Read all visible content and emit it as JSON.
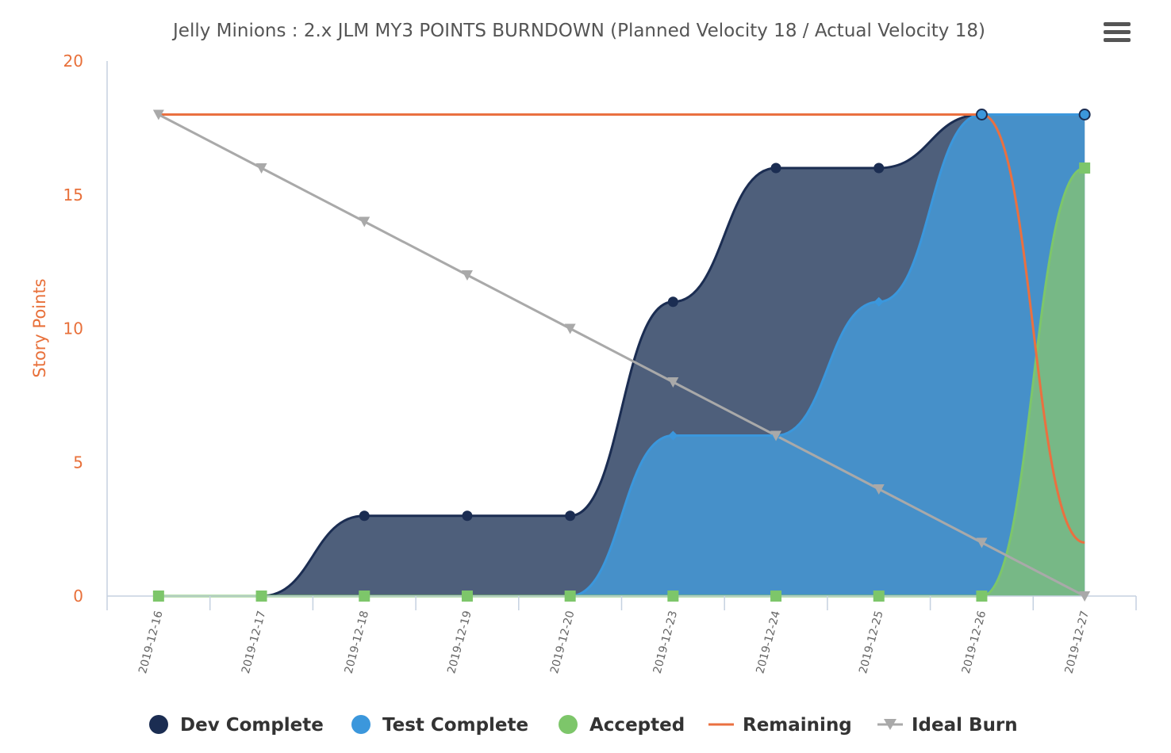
{
  "chart_data": {
    "type": "area",
    "title": "Jelly Minions : 2.x JLM MY3 POINTS BURNDOWN (Planned Velocity 18 / Actual Velocity 18)",
    "ylabel": "Story Points",
    "xlabel": "",
    "ylim": [
      0,
      20
    ],
    "yticks": [
      "0",
      "5",
      "10",
      "15",
      "20"
    ],
    "categories": [
      "2019-12-16",
      "2019-12-17",
      "2019-12-18",
      "2019-12-19",
      "2019-12-20",
      "2019-12-23",
      "2019-12-24",
      "2019-12-25",
      "2019-12-26",
      "2019-12-27"
    ],
    "grid": false,
    "legend_position": "bottom",
    "series": [
      {
        "name": "Dev Complete",
        "kind": "area",
        "color": "#1b2d52",
        "fill": "#4e5f7b",
        "values": [
          0,
          0,
          3,
          3,
          3,
          11,
          16,
          16,
          18,
          18
        ]
      },
      {
        "name": "Test Complete",
        "kind": "area",
        "color": "#3b97dc",
        "fill": "#4690c9",
        "values": [
          0,
          0,
          0,
          0,
          0,
          6,
          6,
          11,
          18,
          18
        ]
      },
      {
        "name": "Accepted",
        "kind": "area",
        "color": "#7dc66a",
        "fill": "#77b886",
        "values": [
          0,
          0,
          0,
          0,
          0,
          0,
          0,
          0,
          0,
          16
        ]
      },
      {
        "name": "Remaining",
        "kind": "line",
        "color": "#ea7040",
        "values": [
          18,
          18,
          18,
          18,
          18,
          18,
          18,
          18,
          18,
          2
        ]
      },
      {
        "name": "Ideal Burn",
        "kind": "line",
        "color": "#a9a9a9",
        "values": [
          18,
          16,
          14,
          12,
          10,
          8,
          6,
          4,
          2,
          0
        ]
      }
    ]
  },
  "menu": {
    "icon": "hamburger-menu-icon"
  }
}
